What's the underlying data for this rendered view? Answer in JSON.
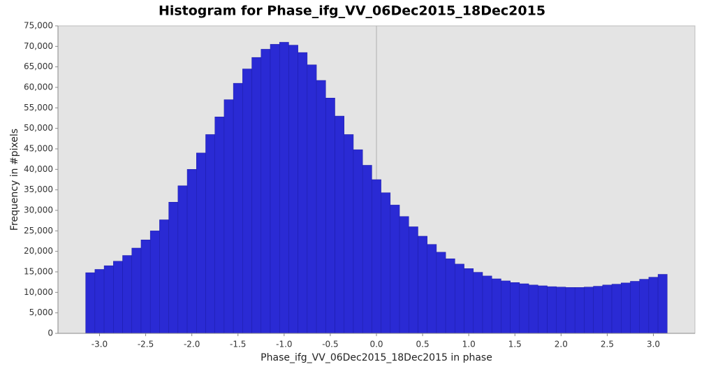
{
  "chart_data": {
    "type": "histogram",
    "title": "Histogram for Phase_ifg_VV_06Dec2015_18Dec2015",
    "x_label": "Phase_ifg_VV_06Dec2015_18Dec2015 in phase",
    "y_label": "Frequency in #pixels",
    "color": "#2a2ad4",
    "bins": [
      -3.15,
      -3.05,
      -2.95,
      -2.85,
      -2.75,
      -2.65,
      -2.55,
      -2.45,
      -2.35,
      -2.25,
      -2.15,
      -2.05,
      -1.95,
      -1.85,
      -1.75,
      -1.65,
      -1.55,
      -1.45,
      -1.35,
      -1.25,
      -1.15,
      -1.05,
      -0.95,
      -0.85,
      -0.75,
      -0.65,
      -0.55,
      -0.45,
      -0.35,
      -0.25,
      -0.15,
      -0.05,
      0.05,
      0.15,
      0.25,
      0.35,
      0.45,
      0.55,
      0.65,
      0.75,
      0.85,
      0.95,
      1.05,
      1.15,
      1.25,
      1.35,
      1.45,
      1.55,
      1.65,
      1.75,
      1.85,
      1.95,
      2.05,
      2.15,
      2.25,
      2.35,
      2.45,
      2.55,
      2.65,
      2.75,
      2.85,
      2.95,
      3.05,
      3.15
    ],
    "values": [
      14800,
      15600,
      16500,
      17600,
      19000,
      20800,
      22800,
      25000,
      27700,
      32000,
      36000,
      40000,
      44000,
      48500,
      52800,
      57000,
      61000,
      64500,
      67300,
      69300,
      70500,
      71000,
      70300,
      68500,
      65500,
      61700,
      57400,
      53000,
      48500,
      44800,
      41000,
      37500,
      34300,
      31300,
      28500,
      26000,
      23700,
      21700,
      19800,
      18200,
      16900,
      15800,
      14900,
      14000,
      13300,
      12800,
      12400,
      12100,
      11800,
      11600,
      11400,
      11300,
      11200,
      11200,
      11300,
      11500,
      11800,
      12000,
      12300,
      12700,
      13200,
      13700,
      14400
    ],
    "xlim": [
      -3.45,
      3.45
    ],
    "ylim": [
      0,
      75000
    ],
    "xticks": [
      {
        "value": -3,
        "label": "-3.0"
      },
      -2.5,
      {
        "value": -2,
        "label": "-2.0"
      },
      -1.5,
      {
        "value": -1,
        "label": "-1.0"
      },
      -0.5,
      {
        "value": 0,
        "label": "0.0"
      },
      0.5,
      {
        "value": 1,
        "label": "1.0"
      },
      1.5,
      {
        "value": 2,
        "label": "2.0"
      },
      2.5,
      {
        "value": 3,
        "label": "3.0"
      }
    ],
    "yticks": [
      0,
      {
        "value": 5000,
        "label": "5,000"
      },
      {
        "value": 10000,
        "label": "10,000"
      },
      {
        "value": 15000,
        "label": "15,000"
      },
      {
        "value": 20000,
        "label": "20,000"
      },
      {
        "value": 25000,
        "label": "25,000"
      },
      {
        "value": 30000,
        "label": "30,000"
      },
      {
        "value": 35000,
        "label": "35,000"
      },
      {
        "value": 40000,
        "label": "40,000"
      },
      {
        "value": 45000,
        "label": "45,000"
      },
      {
        "value": 50000,
        "label": "50,000"
      },
      {
        "value": 55000,
        "label": "55,000"
      },
      {
        "value": 60000,
        "label": "60,000"
      },
      {
        "value": 65000,
        "label": "65,000"
      },
      {
        "value": 70000,
        "label": "70,000"
      },
      {
        "value": 75000,
        "label": "75,000"
      }
    ]
  }
}
